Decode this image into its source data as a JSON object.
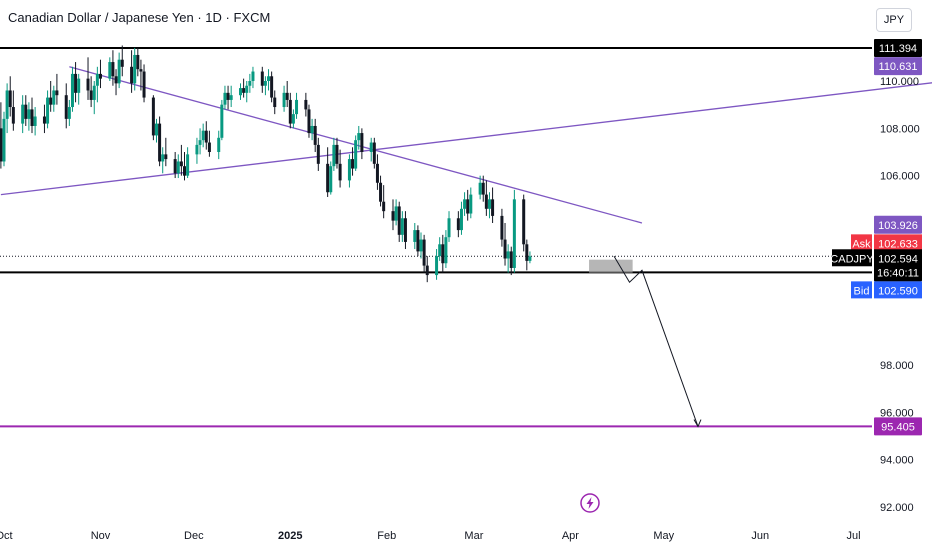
{
  "header": {
    "title": "Canadian Dollar / Japanese Yen · 1D · FXCM",
    "currency": "JPY"
  },
  "colors": {
    "up": "#089981",
    "down": "#131722",
    "purple": "#7e57c2",
    "magenta": "#9c27b0",
    "ask": "#f23645",
    "bid": "#2962ff",
    "black": "#000000"
  },
  "icons": {
    "lightning": "lightning-icon"
  },
  "chart_data": {
    "type": "candlestick",
    "symbol": "CADJPY",
    "ylim": [
      91.5,
      113.0
    ],
    "y_ticks": [
      "110.000",
      "108.000",
      "106.000",
      "98.000",
      "96.000",
      "94.000",
      "92.000"
    ],
    "x_ticks": [
      "Oct",
      "Nov",
      "Dec",
      "2025",
      "Feb",
      "Mar",
      "Apr",
      "May",
      "Jun",
      "Jul"
    ],
    "horizontal_levels": [
      {
        "label": "111.394",
        "value": 111.394,
        "color": "#000000"
      },
      {
        "label": "101.912",
        "value": 101.912,
        "color": "#000000"
      },
      {
        "label": "95.405",
        "value": 95.405,
        "color": "#9c27b0"
      }
    ],
    "price_tags": [
      {
        "label": "110.631",
        "value": 110.631,
        "color": "#7e57c2"
      },
      {
        "label": "103.926",
        "value": 103.926,
        "color": "#7e57c2"
      }
    ],
    "current": {
      "symbol": "CADJPY",
      "price": "102.594",
      "countdown": "16:40:11",
      "value": 102.594
    },
    "ask": {
      "label": "Ask",
      "price": "102.633",
      "value": 102.633
    },
    "bid": {
      "label": "Bid",
      "price": "102.590",
      "value": 102.59
    },
    "trendlines": [
      {
        "name": "descending",
        "from": [
          "2024-10-22",
          110.6
        ],
        "to": [
          "2025-04-24",
          104.0
        ]
      },
      {
        "name": "ascending",
        "from": [
          "2024-09-30",
          105.2
        ],
        "to": [
          "2025-07-31",
          110.0
        ]
      }
    ],
    "projection": [
      [
        "2025-04-15",
        102.6
      ],
      [
        "2025-04-20",
        101.5
      ],
      [
        "2025-04-24",
        102.0
      ],
      [
        "2025-05-12",
        95.4
      ]
    ],
    "zone": {
      "from": "2025-04-07",
      "to": "2025-04-21",
      "low": 101.9,
      "high": 102.45
    },
    "candles": [
      [
        108.0,
        109.1,
        106.3,
        106.6
      ],
      [
        106.6,
        108.7,
        106.4,
        108.4
      ],
      [
        108.4,
        109.9,
        107.8,
        109.6
      ],
      [
        109.6,
        110.2,
        108.5,
        108.9
      ],
      [
        108.9,
        109.6,
        107.9,
        108.2
      ],
      [
        108.2,
        109.4,
        107.8,
        109.0
      ],
      [
        109.0,
        109.4,
        108.1,
        108.4
      ],
      [
        108.4,
        109.1,
        107.9,
        108.8
      ],
      [
        108.8,
        109.3,
        107.8,
        108.1
      ],
      [
        108.1,
        108.9,
        107.7,
        108.5
      ],
      [
        108.5,
        109.0,
        107.8,
        108.2
      ],
      [
        108.2,
        109.6,
        108.0,
        109.3
      ],
      [
        109.3,
        110.0,
        108.7,
        109.0
      ],
      [
        109.0,
        109.8,
        108.7,
        109.6
      ],
      [
        109.6,
        110.3,
        109.0,
        109.4
      ],
      [
        109.4,
        109.9,
        108.0,
        108.4
      ],
      [
        108.4,
        109.2,
        108.1,
        108.9
      ],
      [
        108.9,
        110.6,
        108.7,
        110.3
      ],
      [
        110.3,
        110.8,
        109.1,
        109.5
      ],
      [
        109.5,
        110.3,
        109.0,
        110.1
      ],
      [
        110.1,
        111.0,
        109.2,
        109.6
      ],
      [
        109.6,
        110.2,
        108.9,
        109.2
      ],
      [
        109.2,
        110.0,
        108.6,
        109.8
      ],
      [
        109.8,
        110.6,
        109.1,
        110.3
      ],
      [
        110.3,
        110.9,
        109.7,
        110.1
      ],
      [
        110.1,
        111.0,
        110.0,
        110.8
      ],
      [
        110.8,
        111.3,
        109.8,
        110.2
      ],
      [
        110.2,
        110.5,
        109.4,
        109.9
      ],
      [
        109.9,
        111.2,
        109.7,
        110.9
      ],
      [
        110.9,
        111.5,
        110.2,
        110.6
      ],
      [
        110.6,
        111.3,
        109.5,
        109.9
      ],
      [
        109.9,
        111.4,
        109.6,
        111.1
      ],
      [
        111.1,
        111.4,
        110.2,
        110.5
      ],
      [
        110.5,
        110.9,
        109.6,
        110.4
      ],
      [
        110.4,
        110.7,
        109.1,
        109.3
      ],
      [
        109.3,
        109.4,
        107.5,
        107.7
      ],
      [
        107.7,
        108.4,
        107.4,
        108.2
      ],
      [
        108.2,
        108.5,
        106.4,
        106.6
      ],
      [
        106.6,
        107.2,
        106.1,
        106.9
      ],
      [
        106.9,
        107.6,
        106.4,
        106.7
      ],
      [
        106.7,
        107.0,
        105.9,
        106.1
      ],
      [
        106.1,
        106.9,
        105.9,
        106.6
      ],
      [
        106.6,
        107.3,
        106.0,
        106.4
      ],
      [
        106.4,
        107.0,
        105.8,
        106.0
      ],
      [
        106.0,
        107.2,
        105.9,
        106.9
      ],
      [
        106.9,
        107.6,
        106.5,
        107.3
      ],
      [
        107.3,
        108.0,
        106.9,
        107.5
      ],
      [
        107.5,
        108.2,
        107.2,
        107.9
      ],
      [
        107.9,
        108.3,
        107.1,
        107.4
      ],
      [
        107.4,
        107.9,
        106.8,
        107.0
      ],
      [
        107.0,
        107.9,
        106.7,
        107.6
      ],
      [
        107.6,
        109.2,
        107.5,
        109.0
      ],
      [
        109.0,
        109.8,
        108.8,
        109.5
      ],
      [
        109.5,
        109.8,
        108.8,
        109.2
      ],
      [
        109.2,
        109.8,
        108.9,
        109.4
      ],
      [
        109.4,
        109.9,
        109.2,
        109.7
      ],
      [
        109.7,
        110.1,
        109.3,
        109.5
      ],
      [
        109.5,
        110.0,
        109.1,
        109.8
      ],
      [
        109.8,
        110.3,
        109.5,
        110.0
      ],
      [
        110.0,
        110.6,
        109.7,
        110.4
      ],
      [
        110.4,
        110.6,
        109.5,
        109.8
      ],
      [
        109.8,
        110.2,
        109.4,
        110.0
      ],
      [
        110.0,
        110.5,
        109.6,
        110.2
      ],
      [
        110.2,
        110.4,
        109.1,
        109.3
      ],
      [
        109.3,
        109.6,
        108.6,
        108.9
      ],
      [
        108.9,
        109.8,
        108.7,
        109.5
      ],
      [
        109.5,
        110.0,
        108.9,
        109.2
      ],
      [
        109.2,
        109.5,
        108.0,
        108.2
      ],
      [
        108.2,
        108.8,
        108.0,
        108.6
      ],
      [
        108.6,
        109.5,
        108.4,
        109.2
      ],
      [
        109.2,
        109.5,
        108.5,
        108.8
      ],
      [
        108.8,
        109.0,
        107.6,
        107.8
      ],
      [
        107.8,
        108.4,
        107.5,
        108.1
      ],
      [
        108.1,
        108.4,
        107.0,
        107.3
      ],
      [
        107.3,
        107.6,
        106.2,
        106.5
      ],
      [
        106.5,
        107.2,
        105.1,
        105.3
      ],
      [
        105.3,
        106.6,
        105.2,
        106.4
      ],
      [
        106.4,
        107.6,
        106.2,
        107.3
      ],
      [
        107.3,
        107.6,
        106.3,
        106.5
      ],
      [
        106.5,
        107.1,
        105.5,
        105.8
      ],
      [
        105.8,
        106.9,
        105.5,
        106.7
      ],
      [
        106.7,
        107.2,
        106.0,
        106.3
      ],
      [
        106.3,
        107.7,
        106.2,
        107.5
      ],
      [
        107.5,
        108.1,
        107.1,
        107.8
      ],
      [
        107.8,
        108.0,
        106.7,
        107.0
      ],
      [
        107.0,
        107.6,
        106.6,
        107.4
      ],
      [
        107.4,
        107.6,
        106.3,
        106.5
      ],
      [
        106.5,
        106.9,
        105.4,
        105.7
      ],
      [
        105.7,
        106.0,
        104.7,
        104.9
      ],
      [
        104.9,
        105.6,
        104.2,
        104.5
      ],
      [
        104.5,
        105.0,
        103.7,
        104.1
      ],
      [
        104.1,
        105.0,
        103.9,
        104.7
      ],
      [
        104.7,
        104.9,
        103.2,
        103.5
      ],
      [
        103.5,
        104.5,
        103.2,
        104.2
      ],
      [
        104.2,
        104.5,
        102.9,
        103.2
      ],
      [
        103.2,
        104.0,
        102.9,
        103.7
      ],
      [
        103.7,
        103.9,
        102.6,
        102.8
      ],
      [
        102.8,
        103.6,
        102.5,
        103.3
      ],
      [
        103.3,
        103.5,
        101.9,
        102.2
      ],
      [
        102.2,
        102.6,
        101.5,
        101.8
      ],
      [
        101.8,
        102.9,
        101.6,
        102.6
      ],
      [
        102.6,
        103.4,
        102.4,
        103.1
      ],
      [
        103.1,
        103.5,
        101.9,
        102.3
      ],
      [
        102.3,
        103.7,
        102.1,
        103.4
      ],
      [
        103.4,
        104.5,
        103.2,
        104.2
      ],
      [
        104.2,
        104.5,
        103.4,
        103.7
      ],
      [
        103.7,
        104.9,
        103.5,
        104.6
      ],
      [
        104.6,
        105.3,
        104.3,
        105.0
      ],
      [
        105.0,
        105.4,
        104.1,
        104.4
      ],
      [
        104.4,
        105.5,
        104.2,
        105.2
      ],
      [
        105.2,
        106.0,
        105.0,
        105.7
      ],
      [
        105.7,
        106.0,
        104.9,
        105.2
      ],
      [
        105.2,
        105.8,
        104.3,
        104.6
      ],
      [
        104.6,
        105.3,
        104.2,
        105.0
      ],
      [
        105.0,
        105.5,
        104.0,
        104.3
      ],
      [
        104.3,
        104.6,
        103.0,
        103.3
      ],
      [
        103.3,
        104.0,
        102.2,
        102.5
      ],
      [
        102.5,
        103.1,
        101.9,
        102.8
      ],
      [
        102.8,
        103.0,
        101.8,
        102.1
      ],
      [
        102.1,
        105.4,
        101.9,
        105.0
      ],
      [
        105.0,
        105.2,
        102.8,
        103.1
      ],
      [
        103.1,
        103.3,
        102.0,
        102.4
      ],
      [
        102.4,
        102.8,
        102.3,
        102.59
      ]
    ]
  }
}
